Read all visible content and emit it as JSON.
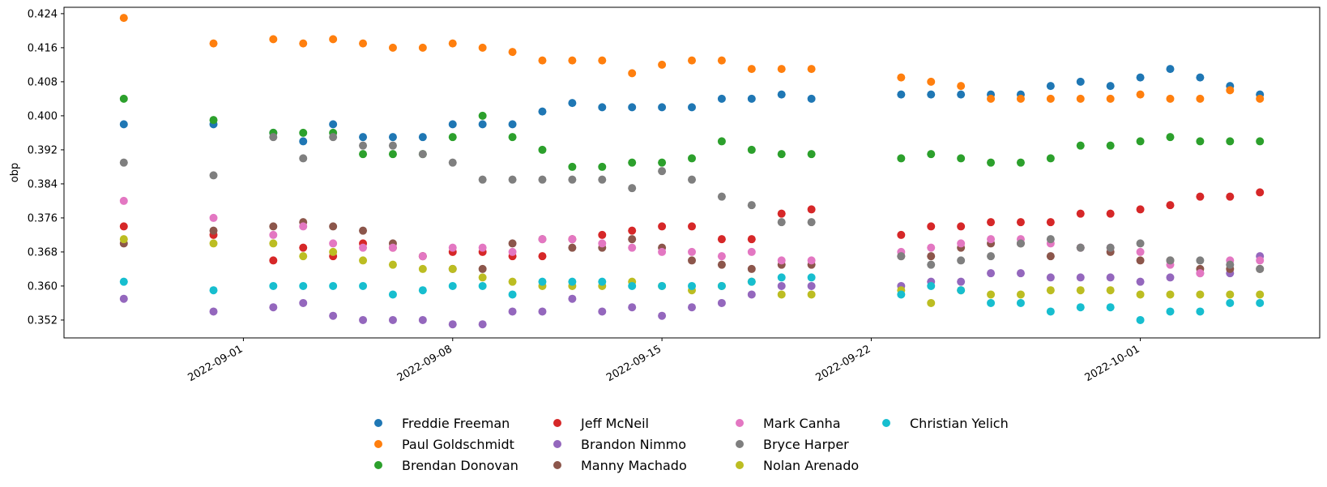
{
  "chart_data": {
    "type": "scatter",
    "title": "",
    "xlabel": "",
    "ylabel": "obp",
    "x_axis_type": "date",
    "xlim": [
      "2022-08-26",
      "2022-10-07"
    ],
    "ylim": [
      0.3478,
      0.4255
    ],
    "x_ticks": [
      "2022-09-01",
      "2022-09-08",
      "2022-09-15",
      "2022-09-22",
      "2022-10-01"
    ],
    "y_ticks": [
      0.352,
      0.36,
      0.368,
      0.376,
      0.384,
      0.392,
      0.4,
      0.408,
      0.416,
      0.424
    ],
    "y_tick_labels": [
      "0.352",
      "0.360",
      "0.368",
      "0.376",
      "0.384",
      "0.392",
      "0.400",
      "0.408",
      "0.416",
      "0.424"
    ],
    "grid": false,
    "legend_position": "bottom-center",
    "x": [
      "2022-08-28",
      "2022-08-31",
      "2022-09-02",
      "2022-09-03",
      "2022-09-04",
      "2022-09-05",
      "2022-09-06",
      "2022-09-07",
      "2022-09-08",
      "2022-09-09",
      "2022-09-10",
      "2022-09-11",
      "2022-09-12",
      "2022-09-13",
      "2022-09-14",
      "2022-09-15",
      "2022-09-16",
      "2022-09-17",
      "2022-09-18",
      "2022-09-19",
      "2022-09-20",
      "2022-09-23",
      "2022-09-24",
      "2022-09-25",
      "2022-09-26",
      "2022-09-27",
      "2022-09-28",
      "2022-09-29",
      "2022-09-30",
      "2022-10-01",
      "2022-10-02",
      "2022-10-03",
      "2022-10-04",
      "2022-10-05"
    ],
    "series": [
      {
        "name": "Freddie Freeman",
        "color": "#1f77b4",
        "values": [
          0.398,
          0.398,
          0.396,
          0.394,
          0.398,
          0.395,
          0.395,
          0.395,
          0.398,
          0.398,
          0.398,
          0.401,
          0.403,
          0.402,
          0.402,
          0.402,
          0.402,
          0.404,
          0.404,
          0.405,
          0.404,
          0.405,
          0.405,
          0.405,
          0.405,
          0.405,
          0.407,
          0.408,
          0.407,
          0.409,
          0.411,
          0.409,
          0.407,
          0.405
        ]
      },
      {
        "name": "Paul Goldschmidt",
        "color": "#ff7f0e",
        "values": [
          0.423,
          0.417,
          0.418,
          0.417,
          0.418,
          0.417,
          0.416,
          0.416,
          0.417,
          0.416,
          0.415,
          0.413,
          0.413,
          0.413,
          0.41,
          0.412,
          0.413,
          0.413,
          0.411,
          0.411,
          0.411,
          0.409,
          0.408,
          0.407,
          0.404,
          0.404,
          0.404,
          0.404,
          0.404,
          0.405,
          0.404,
          0.404,
          0.406,
          0.404
        ]
      },
      {
        "name": "Brendan Donovan",
        "color": "#2ca02c",
        "values": [
          0.404,
          0.399,
          0.396,
          0.396,
          0.396,
          0.391,
          0.391,
          0.391,
          0.395,
          0.4,
          0.395,
          0.392,
          0.388,
          0.388,
          0.389,
          0.389,
          0.39,
          0.394,
          0.392,
          0.391,
          0.391,
          0.39,
          0.391,
          0.39,
          0.389,
          0.389,
          0.39,
          0.393,
          0.393,
          0.394,
          0.395,
          0.394,
          0.394,
          0.394
        ]
      },
      {
        "name": "Jeff McNeil",
        "color": "#d62728",
        "values": [
          0.374,
          0.372,
          0.366,
          0.369,
          0.367,
          0.37,
          0.369,
          0.367,
          0.368,
          0.368,
          0.367,
          0.367,
          0.371,
          0.372,
          0.373,
          0.374,
          0.374,
          0.371,
          0.371,
          0.377,
          0.378,
          0.372,
          0.374,
          0.374,
          0.375,
          0.375,
          0.375,
          0.377,
          0.377,
          0.378,
          0.379,
          0.381,
          0.381,
          0.382
        ]
      },
      {
        "name": "Brandon Nimmo",
        "color": "#9467bd",
        "values": [
          0.357,
          0.354,
          0.355,
          0.356,
          0.353,
          0.352,
          0.352,
          0.352,
          0.351,
          0.351,
          0.354,
          0.354,
          0.357,
          0.354,
          0.355,
          0.353,
          0.355,
          0.356,
          0.358,
          0.36,
          0.36,
          0.36,
          0.361,
          0.361,
          0.363,
          0.363,
          0.362,
          0.362,
          0.362,
          0.361,
          0.362,
          0.363,
          0.363,
          0.367
        ]
      },
      {
        "name": "Manny Machado",
        "color": "#8c564b",
        "values": [
          0.37,
          0.373,
          0.374,
          0.375,
          0.374,
          0.373,
          0.37,
          0.367,
          0.364,
          0.364,
          0.37,
          0.371,
          0.369,
          0.369,
          0.371,
          0.369,
          0.366,
          0.365,
          0.364,
          0.365,
          0.365,
          0.367,
          0.367,
          0.369,
          0.37,
          0.37,
          0.367,
          0.369,
          0.368,
          0.366,
          0.366,
          0.364,
          0.364,
          0.364
        ]
      },
      {
        "name": "Mark Canha",
        "color": "#e377c2",
        "values": [
          0.38,
          0.376,
          0.372,
          0.374,
          0.37,
          0.369,
          0.369,
          0.367,
          0.369,
          0.369,
          0.368,
          0.371,
          0.371,
          0.37,
          0.369,
          0.368,
          0.368,
          0.367,
          0.368,
          0.366,
          0.366,
          0.368,
          0.369,
          0.37,
          0.371,
          0.371,
          0.37,
          0.369,
          0.369,
          0.368,
          0.365,
          0.363,
          0.366,
          0.366
        ]
      },
      {
        "name": "Bryce Harper",
        "color": "#7f7f7f",
        "values": [
          0.389,
          0.386,
          0.395,
          0.39,
          0.395,
          0.393,
          0.393,
          0.391,
          0.389,
          0.385,
          0.385,
          0.385,
          0.385,
          0.385,
          0.383,
          0.387,
          0.385,
          0.381,
          0.379,
          0.375,
          0.375,
          0.367,
          0.365,
          0.366,
          0.367,
          0.37,
          0.371,
          0.369,
          0.369,
          0.37,
          0.366,
          0.366,
          0.365,
          0.364
        ]
      },
      {
        "name": "Nolan Arenado",
        "color": "#bcbd22",
        "values": [
          0.371,
          0.37,
          0.37,
          0.367,
          0.368,
          0.366,
          0.365,
          0.364,
          0.364,
          0.362,
          0.361,
          0.36,
          0.36,
          0.36,
          0.361,
          0.36,
          0.359,
          0.36,
          0.361,
          0.358,
          0.358,
          0.359,
          0.356,
          0.359,
          0.358,
          0.358,
          0.359,
          0.359,
          0.359,
          0.358,
          0.358,
          0.358,
          0.358,
          0.358
        ]
      },
      {
        "name": "Christian Yelich",
        "color": "#17becf",
        "values": [
          0.361,
          0.359,
          0.36,
          0.36,
          0.36,
          0.36,
          0.358,
          0.359,
          0.36,
          0.36,
          0.358,
          0.361,
          0.361,
          0.361,
          0.36,
          0.36,
          0.36,
          0.36,
          0.361,
          0.362,
          0.362,
          0.358,
          0.36,
          0.359,
          0.356,
          0.356,
          0.354,
          0.355,
          0.355,
          0.352,
          0.354,
          0.354,
          0.356,
          0.356
        ]
      }
    ]
  }
}
